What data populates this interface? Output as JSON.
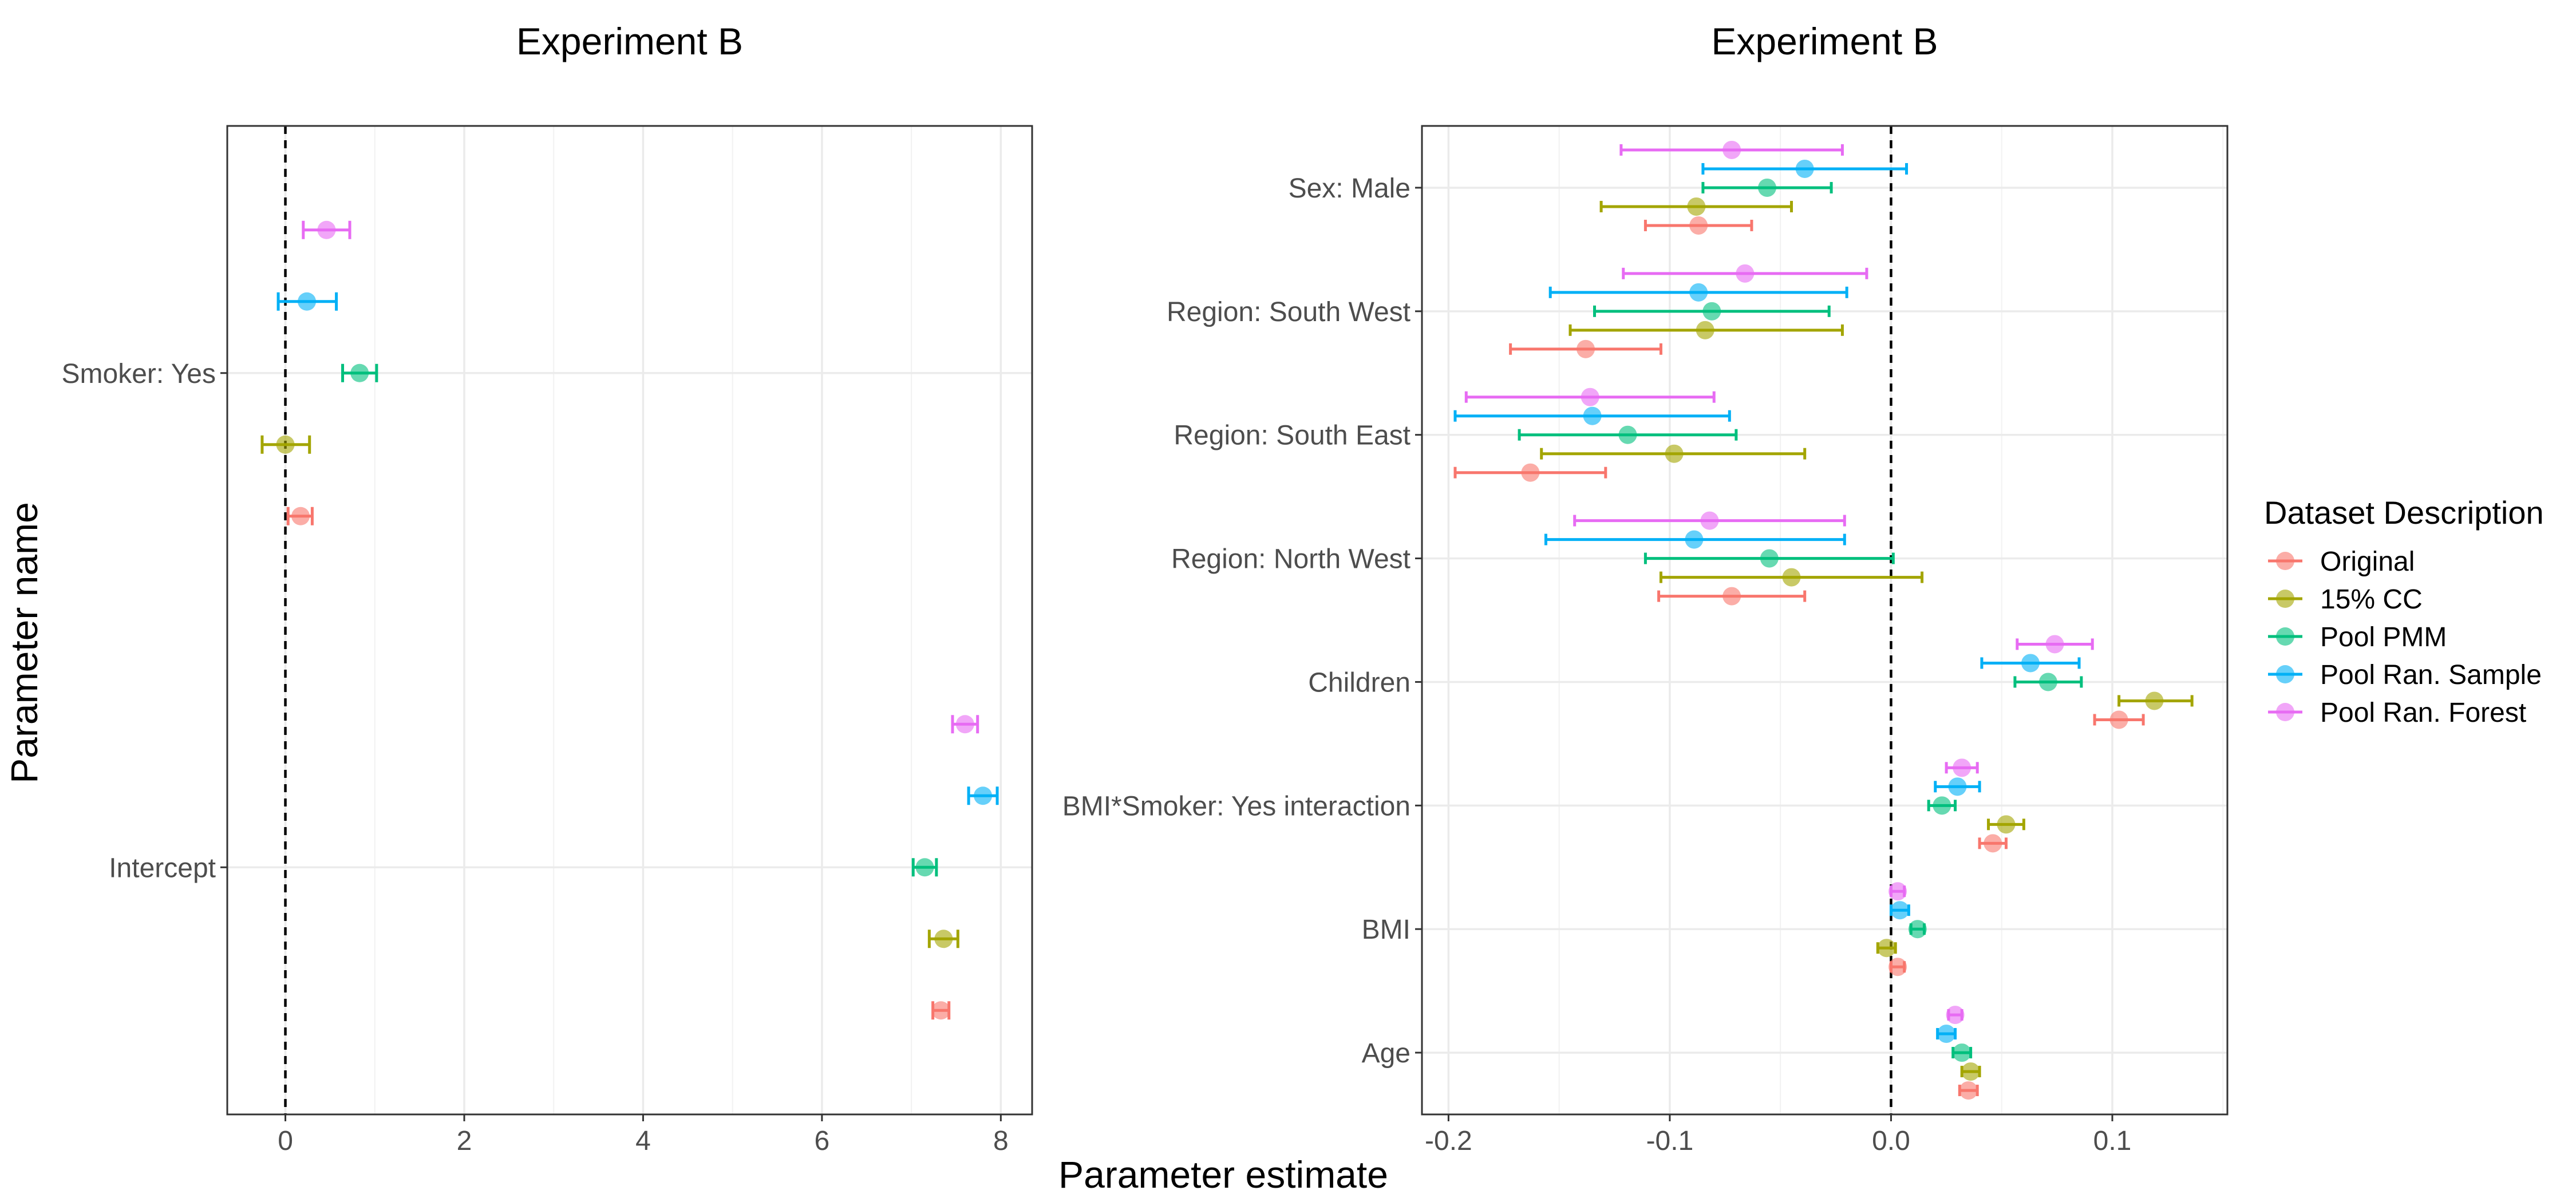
{
  "page": {
    "ylabel": "Parameter name",
    "xlabel": "Parameter estimate"
  },
  "legend": {
    "title": "Dataset Description",
    "items": [
      {
        "label": "Original",
        "color": "#F8766D"
      },
      {
        "label": "15% CC",
        "color": "#A3A500"
      },
      {
        "label": "Pool PMM",
        "color": "#00BF7D"
      },
      {
        "label": "Pool Ran. Sample",
        "color": "#00B0F6"
      },
      {
        "label": "Pool Ran. Forest",
        "color": "#E76BF3"
      }
    ]
  },
  "chart_data": [
    {
      "type": "scatter",
      "title": "Experiment B",
      "xlabel": "Parameter estimate",
      "ylabel": "Parameter name",
      "xlim": [
        -0.65,
        8.35
      ],
      "xticks": [
        0,
        2,
        4,
        6,
        8
      ],
      "xtick_labels": [
        "0",
        "2",
        "4",
        "6",
        "8"
      ],
      "reference_line_x": 0,
      "grid": true,
      "categories": [
        "Smoker: Yes",
        "Intercept"
      ],
      "series": [
        {
          "name": "Original",
          "color": "#F8766D",
          "estimates": [
            0.17,
            7.33
          ],
          "lower": [
            0.03,
            7.24
          ],
          "upper": [
            0.3,
            7.42
          ]
        },
        {
          "name": "15% CC",
          "color": "#A3A500",
          "estimates": [
            0.0,
            7.36
          ],
          "lower": [
            -0.26,
            7.2
          ],
          "upper": [
            0.27,
            7.52
          ]
        },
        {
          "name": "Pool PMM",
          "color": "#00BF7D",
          "estimates": [
            0.83,
            7.15
          ],
          "lower": [
            0.64,
            7.02
          ],
          "upper": [
            1.02,
            7.28
          ]
        },
        {
          "name": "Pool Ran. Sample",
          "color": "#00B0F6",
          "estimates": [
            0.24,
            7.8
          ],
          "lower": [
            -0.08,
            7.64
          ],
          "upper": [
            0.57,
            7.96
          ]
        },
        {
          "name": "Pool Ran. Forest",
          "color": "#E76BF3",
          "estimates": [
            0.46,
            7.6
          ],
          "lower": [
            0.2,
            7.46
          ],
          "upper": [
            0.72,
            7.74
          ]
        }
      ]
    },
    {
      "type": "scatter",
      "title": "Experiment B",
      "xlabel": "Parameter estimate",
      "ylabel": "Parameter name",
      "xlim": [
        -0.212,
        0.152
      ],
      "xticks": [
        -0.2,
        -0.1,
        0.0,
        0.1
      ],
      "xtick_labels": [
        "-0.2",
        "-0.1",
        "0.0",
        "0.1"
      ],
      "reference_line_x": 0,
      "grid": true,
      "categories": [
        "Sex: Male",
        "Region: South West",
        "Region: South East",
        "Region: North West",
        "Children",
        "BMI*Smoker: Yes interaction",
        "BMI",
        "Age"
      ],
      "series": [
        {
          "name": "Original",
          "color": "#F8766D",
          "estimates": [
            -0.087,
            -0.138,
            -0.163,
            -0.072,
            0.103,
            0.046,
            0.003,
            0.035
          ],
          "lower": [
            -0.111,
            -0.172,
            -0.197,
            -0.105,
            0.092,
            0.04,
            0.0,
            0.031
          ],
          "upper": [
            -0.063,
            -0.104,
            -0.129,
            -0.039,
            0.114,
            0.052,
            0.006,
            0.039
          ]
        },
        {
          "name": "15% CC",
          "color": "#A3A500",
          "estimates": [
            -0.088,
            -0.084,
            -0.098,
            -0.045,
            0.119,
            0.052,
            -0.002,
            0.036
          ],
          "lower": [
            -0.131,
            -0.145,
            -0.158,
            -0.104,
            0.103,
            0.044,
            -0.006,
            0.032
          ],
          "upper": [
            -0.045,
            -0.022,
            -0.039,
            0.014,
            0.136,
            0.06,
            0.002,
            0.04
          ]
        },
        {
          "name": "Pool PMM",
          "color": "#00BF7D",
          "estimates": [
            -0.056,
            -0.081,
            -0.119,
            -0.055,
            0.071,
            0.023,
            0.012,
            0.032
          ],
          "lower": [
            -0.085,
            -0.134,
            -0.168,
            -0.111,
            0.056,
            0.017,
            0.009,
            0.028
          ],
          "upper": [
            -0.027,
            -0.028,
            -0.07,
            0.001,
            0.086,
            0.029,
            0.015,
            0.036
          ]
        },
        {
          "name": "Pool Ran. Sample",
          "color": "#00B0F6",
          "estimates": [
            -0.039,
            -0.087,
            -0.135,
            -0.089,
            0.063,
            0.03,
            0.004,
            0.025
          ],
          "lower": [
            -0.085,
            -0.154,
            -0.197,
            -0.156,
            0.041,
            0.02,
            0.0,
            0.021
          ],
          "upper": [
            0.007,
            -0.02,
            -0.073,
            -0.021,
            0.085,
            0.04,
            0.008,
            0.029
          ]
        },
        {
          "name": "Pool Ran. Forest",
          "color": "#E76BF3",
          "estimates": [
            -0.072,
            -0.066,
            -0.136,
            -0.082,
            0.074,
            0.032,
            0.003,
            0.029
          ],
          "lower": [
            -0.122,
            -0.121,
            -0.192,
            -0.143,
            0.057,
            0.025,
            0.0,
            0.026
          ],
          "upper": [
            -0.022,
            -0.011,
            -0.08,
            -0.021,
            0.091,
            0.039,
            0.006,
            0.032
          ]
        }
      ]
    }
  ]
}
